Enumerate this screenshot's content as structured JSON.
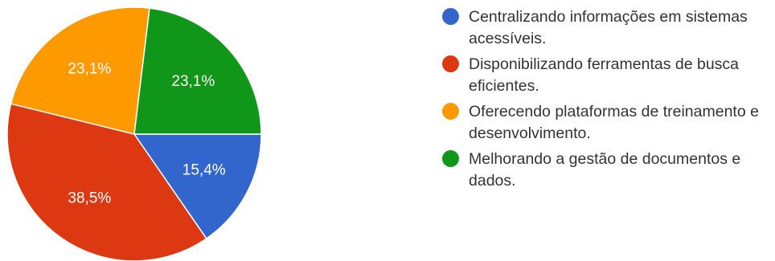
{
  "chart_data": {
    "type": "pie",
    "slices": [
      {
        "label": "Centralizando informações em sistemas acessíveis.",
        "value": 15.4,
        "display": "15,4%",
        "color": "#3366cc"
      },
      {
        "label": "Disponibilizando ferramentas de busca eficientes.",
        "value": 38.5,
        "display": "38,5%",
        "color": "#dc3912"
      },
      {
        "label": "Oferecendo plataformas de treinamento e desenvolvimento.",
        "value": 23.1,
        "display": "23,1%",
        "color": "#ff9900"
      },
      {
        "label": "Melhorando a gestão de documentos e dados.",
        "value": 23.1,
        "display": "23,1%",
        "color": "#109618"
      }
    ],
    "start_angle": "3 o'clock",
    "direction": "clockwise",
    "legend_position": "right"
  }
}
